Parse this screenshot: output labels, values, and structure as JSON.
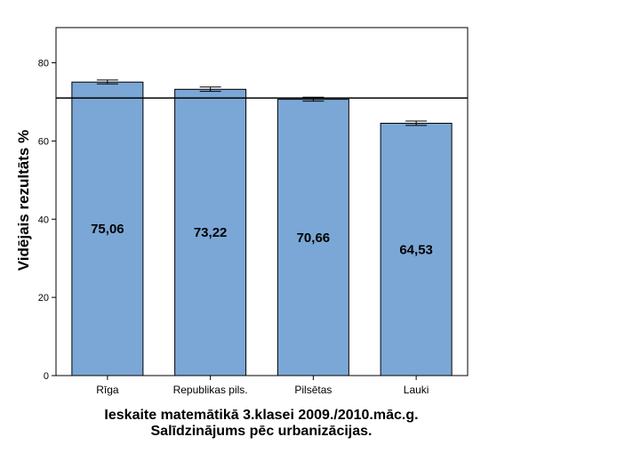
{
  "chart_data": {
    "type": "bar",
    "categories": [
      "Rīga",
      "Republikas pils.",
      "Pilsētas",
      "Lauki"
    ],
    "values": [
      75.06,
      73.22,
      70.66,
      64.53
    ],
    "value_labels": [
      "75,06",
      "73,22",
      "70,66",
      "64,53"
    ],
    "error_bars": [
      {
        "low": 74.6,
        "high": 75.6
      },
      {
        "low": 72.7,
        "high": 73.8
      },
      {
        "low": 70.2,
        "high": 71.2
      },
      {
        "low": 64.0,
        "high": 65.1
      }
    ],
    "reference_line": 71.0,
    "ylabel": "Vidējais rezultāts %",
    "xlabel_line1": "Ieskaite matemātikā 3.klasei 2009./2010.māc.g.",
    "xlabel_line2": "Salīdzinājums pēc urbanizācijas.",
    "ylim": [
      0,
      89
    ],
    "yticks": [
      0,
      20,
      40,
      60,
      80
    ],
    "grid": false,
    "colors": {
      "bar_fill": "#7ba7d6",
      "bar_stroke": "#000000"
    }
  }
}
